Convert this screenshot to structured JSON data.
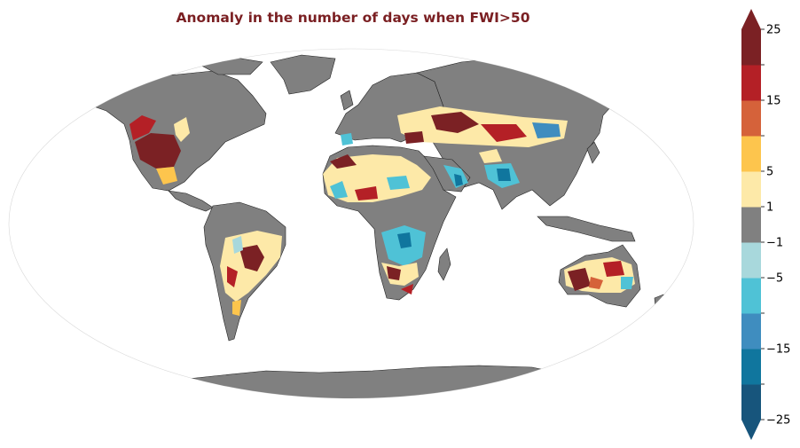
{
  "title": "Anomaly in the number of days when FWI>50",
  "colors": {
    "title": "#7a1f22",
    "land_no_change": "#808080",
    "ocean": "#ffffff",
    "coastline": "#222222"
  },
  "colorbar": {
    "orientation": "vertical",
    "extend": "both",
    "bins": [
      {
        "from": -25,
        "to": -20,
        "color": "#17557c"
      },
      {
        "from": -20,
        "to": -15,
        "color": "#10769e"
      },
      {
        "from": -15,
        "to": -10,
        "color": "#3f8dbf"
      },
      {
        "from": -10,
        "to": -5,
        "color": "#4fc2d6"
      },
      {
        "from": -5,
        "to": -1,
        "color": "#a8d8dc"
      },
      {
        "from": -1,
        "to": 1,
        "color": "#808080"
      },
      {
        "from": 1,
        "to": 5,
        "color": "#fde9a8"
      },
      {
        "from": 5,
        "to": 10,
        "color": "#fdc54d"
      },
      {
        "from": 10,
        "to": 15,
        "color": "#d5623a"
      },
      {
        "from": 15,
        "to": 20,
        "color": "#b42026"
      },
      {
        "from": 20,
        "to": 25,
        "color": "#7b2124"
      }
    ],
    "labels": [
      "25",
      "15",
      "5",
      "1",
      "−1",
      "−5",
      "−15",
      "−25"
    ]
  }
}
